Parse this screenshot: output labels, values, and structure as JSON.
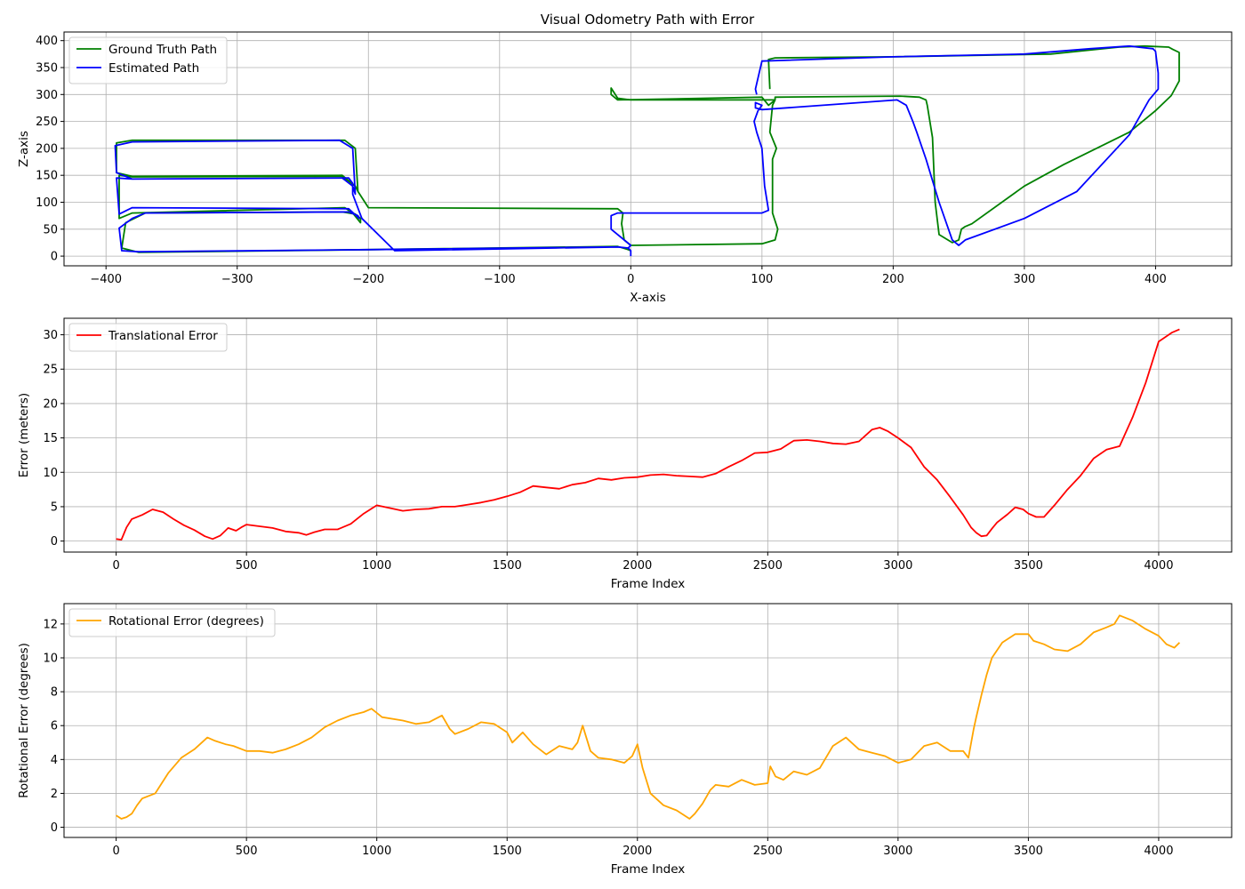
{
  "figure_title": "Visual Odometry Path with Error",
  "chart_data": [
    {
      "type": "line",
      "title": "Visual Odometry Path with Error",
      "xlabel": "X-axis",
      "ylabel": "Z-axis",
      "xlim": [
        -432,
        458
      ],
      "ylim": [
        -18,
        416
      ],
      "xticks": [
        -400,
        -300,
        -200,
        -100,
        0,
        100,
        200,
        300,
        400
      ],
      "xtick_labels": [
        "−400",
        "−300",
        "−200",
        "−100",
        "0",
        "100",
        "200",
        "300",
        "400"
      ],
      "yticks": [
        0,
        50,
        100,
        150,
        200,
        250,
        300,
        350,
        400
      ],
      "ytick_labels": [
        "0",
        "50",
        "100",
        "150",
        "200",
        "250",
        "300",
        "350",
        "400"
      ],
      "grid": true,
      "legend_position": "upper-left",
      "series": [
        {
          "name": "Ground Truth Path",
          "color": "#008000",
          "x": [
            0,
            -2,
            -10,
            -200,
            -375,
            -388,
            -385,
            -370,
            -220,
            -210,
            -206,
            -206,
            -212,
            -218,
            -380,
            -390,
            -390,
            -380,
            -220,
            -210,
            -208,
            -210,
            -218,
            -380,
            -392,
            -392,
            -380,
            -220,
            -210,
            -208,
            -200,
            -10,
            -6,
            -7,
            -5,
            0,
            100,
            110,
            112,
            108,
            108,
            111,
            106,
            108,
            110,
            105,
            100,
            -10,
            -15,
            -15,
            -10,
            0,
            100,
            110,
            110,
            205,
            220,
            225,
            226,
            230,
            232,
            235,
            245,
            250,
            252,
            255,
            260,
            300,
            330,
            380,
            400,
            412,
            418,
            418,
            413,
            410,
            392,
            372,
            320,
            200,
            110,
            105,
            106
          ],
          "y": [
            10,
            12,
            18,
            12,
            7,
            15,
            62,
            80,
            82,
            78,
            70,
            62,
            80,
            90,
            80,
            70,
            150,
            147,
            148,
            130,
            120,
            200,
            215,
            215,
            210,
            155,
            148,
            150,
            130,
            120,
            90,
            88,
            80,
            60,
            30,
            20,
            23,
            30,
            50,
            80,
            180,
            200,
            230,
            280,
            290,
            280,
            295,
            290,
            300,
            312,
            293,
            290,
            290,
            290,
            295,
            297,
            295,
            290,
            280,
            220,
            100,
            40,
            25,
            30,
            50,
            55,
            60,
            130,
            170,
            230,
            270,
            298,
            325,
            378,
            384,
            388,
            390,
            388,
            375,
            370,
            368,
            365,
            310
          ]
        },
        {
          "name": "Estimated Path",
          "color": "#0000ff",
          "x": [
            0,
            0,
            -2,
            -10,
            -200,
            -375,
            -388,
            -390,
            -380,
            -370,
            -215,
            -208,
            -207,
            -215,
            -380,
            -390,
            -392,
            -380,
            -220,
            -212,
            -210,
            -212,
            -222,
            -380,
            -393,
            -392,
            -380,
            -215,
            -212,
            -212,
            -205,
            -180,
            -10,
            -2,
            0,
            -15,
            -15,
            -10,
            0,
            100,
            105,
            102,
            100,
            96,
            94,
            97,
            100,
            95,
            95,
            100,
            203,
            210,
            215,
            218,
            225,
            235,
            245,
            250,
            255,
            300,
            340,
            380,
            395,
            402,
            402,
            400,
            398,
            380,
            350,
            300,
            200,
            100,
            95,
            96
          ],
          "y": [
            0,
            10,
            15,
            17,
            12,
            8,
            10,
            52,
            70,
            80,
            82,
            75,
            70,
            88,
            90,
            78,
            145,
            143,
            145,
            130,
            115,
            200,
            215,
            212,
            205,
            155,
            143,
            145,
            135,
            115,
            70,
            10,
            17,
            15,
            20,
            50,
            75,
            80,
            80,
            80,
            85,
            130,
            200,
            230,
            250,
            270,
            280,
            285,
            275,
            272,
            290,
            280,
            250,
            230,
            180,
            100,
            30,
            20,
            30,
            70,
            120,
            225,
            290,
            310,
            340,
            380,
            385,
            390,
            385,
            375,
            370,
            362,
            310,
            300
          ]
        }
      ]
    },
    {
      "type": "line",
      "title": "",
      "xlabel": "Frame Index",
      "ylabel": "Error (meters)",
      "xlim": [
        -200,
        4280
      ],
      "ylim": [
        -1.6,
        32.4
      ],
      "xticks": [
        0,
        500,
        1000,
        1500,
        2000,
        2500,
        3000,
        3500,
        4000
      ],
      "xtick_labels": [
        "0",
        "500",
        "1000",
        "1500",
        "2000",
        "2500",
        "3000",
        "3500",
        "4000"
      ],
      "yticks": [
        0,
        5,
        10,
        15,
        20,
        25,
        30
      ],
      "ytick_labels": [
        "0",
        "5",
        "10",
        "15",
        "20",
        "25",
        "30"
      ],
      "grid": true,
      "legend_position": "upper-left",
      "series": [
        {
          "name": "Translational Error",
          "color": "#ff0000",
          "x": [
            0,
            20,
            40,
            60,
            100,
            140,
            180,
            220,
            260,
            300,
            340,
            370,
            400,
            430,
            460,
            480,
            500,
            540,
            600,
            650,
            700,
            730,
            760,
            800,
            850,
            900,
            950,
            1000,
            1050,
            1100,
            1150,
            1200,
            1250,
            1300,
            1350,
            1400,
            1450,
            1500,
            1550,
            1600,
            1650,
            1700,
            1750,
            1800,
            1850,
            1900,
            1950,
            2000,
            2050,
            2100,
            2150,
            2200,
            2250,
            2300,
            2350,
            2400,
            2450,
            2500,
            2550,
            2600,
            2650,
            2700,
            2750,
            2800,
            2850,
            2900,
            2930,
            2960,
            3000,
            3050,
            3100,
            3150,
            3200,
            3250,
            3280,
            3300,
            3320,
            3340,
            3360,
            3380,
            3420,
            3450,
            3480,
            3500,
            3530,
            3560,
            3600,
            3650,
            3700,
            3750,
            3800,
            3850,
            3900,
            3950,
            4000,
            4050,
            4080
          ],
          "y": [
            0.3,
            0.2,
            2.0,
            3.2,
            3.8,
            4.6,
            4.2,
            3.2,
            2.3,
            1.6,
            0.7,
            0.3,
            0.8,
            1.9,
            1.5,
            2.0,
            2.4,
            2.2,
            1.9,
            1.4,
            1.2,
            0.9,
            1.3,
            1.7,
            1.7,
            2.5,
            4.0,
            5.2,
            4.8,
            4.4,
            4.6,
            4.7,
            5.0,
            5.0,
            5.3,
            5.6,
            6.0,
            6.5,
            7.1,
            8.0,
            7.8,
            7.6,
            8.2,
            8.5,
            9.1,
            8.9,
            9.2,
            9.3,
            9.6,
            9.7,
            9.5,
            9.4,
            9.3,
            9.8,
            10.8,
            11.7,
            12.8,
            12.9,
            13.4,
            14.6,
            14.7,
            14.5,
            14.2,
            14.1,
            14.5,
            16.2,
            16.5,
            16.0,
            15.0,
            13.6,
            10.8,
            8.9,
            6.4,
            3.8,
            2.0,
            1.2,
            0.7,
            0.8,
            1.8,
            2.7,
            3.9,
            4.9,
            4.6,
            4.0,
            3.5,
            3.5,
            5.2,
            7.5,
            9.5,
            12.0,
            13.3,
            13.8,
            18.0,
            23.0,
            29.0,
            30.3,
            30.8
          ]
        }
      ]
    },
    {
      "type": "line",
      "title": "",
      "xlabel": "Frame Index",
      "ylabel": "Rotational Error (degrees)",
      "xlim": [
        -200,
        4280
      ],
      "ylim": [
        -0.6,
        13.2
      ],
      "xticks": [
        0,
        500,
        1000,
        1500,
        2000,
        2500,
        3000,
        3500,
        4000
      ],
      "xtick_labels": [
        "0",
        "500",
        "1000",
        "1500",
        "2000",
        "2500",
        "3000",
        "3500",
        "4000"
      ],
      "yticks": [
        0,
        2,
        4,
        6,
        8,
        10,
        12
      ],
      "ytick_labels": [
        "0",
        "2",
        "4",
        "6",
        "8",
        "10",
        "12"
      ],
      "grid": true,
      "legend_position": "upper-left",
      "series": [
        {
          "name": "Rotational Error (degrees)",
          "color": "#ffa500",
          "x": [
            0,
            20,
            40,
            60,
            80,
            100,
            150,
            200,
            250,
            300,
            350,
            380,
            420,
            450,
            500,
            550,
            600,
            650,
            700,
            750,
            800,
            850,
            900,
            950,
            980,
            1020,
            1100,
            1150,
            1200,
            1250,
            1280,
            1300,
            1350,
            1400,
            1450,
            1500,
            1520,
            1560,
            1600,
            1650,
            1700,
            1750,
            1770,
            1790,
            1820,
            1850,
            1900,
            1950,
            1980,
            2000,
            2020,
            2050,
            2100,
            2150,
            2200,
            2220,
            2250,
            2280,
            2300,
            2350,
            2400,
            2450,
            2500,
            2510,
            2530,
            2560,
            2600,
            2650,
            2700,
            2750,
            2800,
            2850,
            2900,
            2950,
            3000,
            3050,
            3100,
            3150,
            3200,
            3250,
            3270,
            3290,
            3300,
            3320,
            3340,
            3360,
            3400,
            3450,
            3500,
            3520,
            3560,
            3600,
            3650,
            3700,
            3750,
            3800,
            3830,
            3850,
            3900,
            3950,
            4000,
            4030,
            4060,
            4080
          ],
          "y": [
            0.7,
            0.5,
            0.6,
            0.8,
            1.3,
            1.7,
            2.0,
            3.2,
            4.1,
            4.6,
            5.3,
            5.1,
            4.9,
            4.8,
            4.5,
            4.5,
            4.4,
            4.6,
            4.9,
            5.3,
            5.9,
            6.3,
            6.6,
            6.8,
            7.0,
            6.5,
            6.3,
            6.1,
            6.2,
            6.6,
            5.8,
            5.5,
            5.8,
            6.2,
            6.1,
            5.6,
            5.0,
            5.6,
            4.9,
            4.3,
            4.8,
            4.6,
            5.0,
            6.0,
            4.5,
            4.1,
            4.0,
            3.8,
            4.2,
            4.9,
            3.5,
            2.0,
            1.3,
            1.0,
            0.5,
            0.8,
            1.4,
            2.2,
            2.5,
            2.4,
            2.8,
            2.5,
            2.6,
            3.6,
            3.0,
            2.8,
            3.3,
            3.1,
            3.5,
            4.8,
            5.3,
            4.6,
            4.4,
            4.2,
            3.8,
            4.0,
            4.8,
            5.0,
            4.5,
            4.5,
            4.1,
            5.8,
            6.5,
            7.8,
            9.0,
            10.0,
            10.9,
            11.4,
            11.4,
            11.0,
            10.8,
            10.5,
            10.4,
            10.8,
            11.5,
            11.8,
            12.0,
            12.5,
            12.2,
            11.7,
            11.3,
            10.8,
            10.6,
            10.9
          ]
        }
      ]
    }
  ]
}
